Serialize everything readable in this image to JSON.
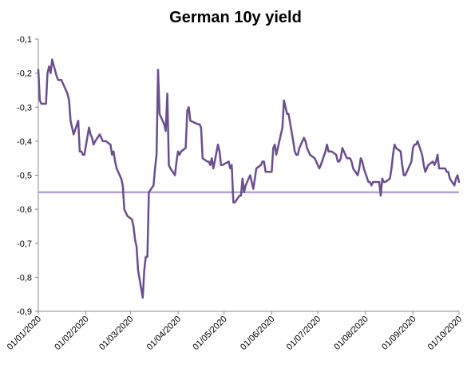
{
  "chart_data": {
    "type": "line",
    "title": "German 10y yield",
    "xlabel": "",
    "ylabel": "",
    "x_range": [
      "01/01/2020",
      "01/10/2020"
    ],
    "ylim": [
      -0.9,
      -0.1
    ],
    "y_ticks": [
      -0.1,
      -0.2,
      -0.3,
      -0.4,
      -0.5,
      -0.6,
      -0.7,
      -0.8,
      -0.9
    ],
    "y_tick_labels": [
      "-0,1",
      "-0,2",
      "-0,3",
      "-0,4",
      "-0,5",
      "-0,6",
      "-0,7",
      "-0,8",
      "-0,9"
    ],
    "x_ticks": [
      "01/01/2020",
      "01/02/2020",
      "01/03/2020",
      "01/04/2020",
      "01/05/2020",
      "01/06/2020",
      "01/07/2020",
      "01/08/2020",
      "01/09/2020",
      "01/10/2020"
    ],
    "grid": false,
    "legend": "none",
    "colors": {
      "series": "#6a4e8f",
      "reference": "#b3a2d1",
      "axis": "#888888"
    },
    "reference_line": {
      "y": -0.55
    },
    "series": [
      {
        "x": [
          "01/01/2020",
          "02/01/2020",
          "03/01/2020",
          "06/01/2020",
          "07/01/2020",
          "08/01/2020",
          "09/01/2020",
          "10/01/2020",
          "13/01/2020",
          "14/01/2020",
          "15/01/2020",
          "16/01/2020",
          "17/01/2020",
          "20/01/2020",
          "21/01/2020",
          "22/01/2020",
          "23/01/2020",
          "24/01/2020",
          "27/01/2020",
          "28/01/2020",
          "29/01/2020",
          "30/01/2020",
          "31/01/2020",
          "03/02/2020",
          "04/02/2020",
          "05/02/2020",
          "06/02/2020",
          "07/02/2020",
          "10/02/2020",
          "11/02/2020",
          "12/02/2020",
          "13/02/2020",
          "14/02/2020",
          "17/02/2020",
          "18/02/2020",
          "19/02/2020",
          "20/02/2020",
          "21/02/2020",
          "24/02/2020",
          "25/02/2020",
          "26/02/2020",
          "27/02/2020",
          "28/02/2020",
          "02/03/2020",
          "03/03/2020",
          "04/03/2020",
          "05/03/2020",
          "06/03/2020",
          "09/03/2020",
          "10/03/2020",
          "11/03/2020",
          "12/03/2020",
          "13/03/2020",
          "16/03/2020",
          "17/03/2020",
          "18/03/2020",
          "19/03/2020",
          "20/03/2020",
          "23/03/2020",
          "24/03/2020",
          "25/03/2020",
          "26/03/2020",
          "27/03/2020",
          "30/03/2020",
          "31/03/2020",
          "01/04/2020",
          "02/04/2020",
          "03/04/2020",
          "06/04/2020",
          "07/04/2020",
          "08/04/2020",
          "09/04/2020",
          "14/04/2020",
          "15/04/2020",
          "16/04/2020",
          "17/04/2020",
          "20/04/2020",
          "21/04/2020",
          "22/04/2020",
          "23/04/2020",
          "24/04/2020",
          "27/04/2020",
          "28/04/2020",
          "29/04/2020",
          "30/04/2020",
          "04/05/2020",
          "05/05/2020",
          "06/05/2020",
          "07/05/2020",
          "08/05/2020",
          "11/05/2020",
          "12/05/2020",
          "13/05/2020",
          "14/05/2020",
          "15/05/2020",
          "18/05/2020",
          "19/05/2020",
          "20/05/2020",
          "21/05/2020",
          "22/05/2020",
          "25/05/2020",
          "26/05/2020",
          "27/05/2020",
          "28/05/2020",
          "29/05/2020",
          "01/06/2020",
          "02/06/2020",
          "03/06/2020",
          "04/06/2020",
          "05/06/2020",
          "08/06/2020",
          "09/06/2020",
          "10/06/2020",
          "11/06/2020",
          "12/06/2020",
          "15/06/2020",
          "16/06/2020",
          "17/06/2020",
          "18/06/2020",
          "19/06/2020",
          "22/06/2020",
          "23/06/2020",
          "24/06/2020",
          "25/06/2020",
          "26/06/2020",
          "29/06/2020",
          "30/06/2020",
          "01/07/2020",
          "02/07/2020",
          "03/07/2020",
          "06/07/2020",
          "07/07/2020",
          "08/07/2020",
          "09/07/2020",
          "10/07/2020",
          "13/07/2020",
          "14/07/2020",
          "15/07/2020",
          "16/07/2020",
          "17/07/2020",
          "20/07/2020",
          "21/07/2020",
          "22/07/2020",
          "23/07/2020",
          "24/07/2020",
          "27/07/2020",
          "28/07/2020",
          "29/07/2020",
          "30/07/2020",
          "31/07/2020",
          "03/08/2020",
          "04/08/2020",
          "05/08/2020",
          "06/08/2020",
          "07/08/2020",
          "10/08/2020",
          "11/08/2020",
          "12/08/2020",
          "13/08/2020",
          "14/08/2020",
          "17/08/2020",
          "18/08/2020",
          "19/08/2020",
          "20/08/2020",
          "21/08/2020",
          "24/08/2020",
          "25/08/2020",
          "26/08/2020",
          "27/08/2020",
          "28/08/2020",
          "31/08/2020",
          "01/09/2020",
          "02/09/2020",
          "03/09/2020",
          "04/09/2020",
          "07/09/2020",
          "08/09/2020",
          "09/09/2020",
          "10/09/2020",
          "11/09/2020",
          "14/09/2020",
          "15/09/2020",
          "16/09/2020",
          "17/09/2020",
          "18/09/2020",
          "21/09/2020",
          "22/09/2020",
          "23/09/2020",
          "24/09/2020",
          "25/09/2020",
          "28/09/2020",
          "29/09/2020",
          "30/09/2020",
          "01/10/2020"
        ],
        "values": [
          -0.19,
          -0.28,
          -0.29,
          -0.29,
          -0.2,
          -0.18,
          -0.2,
          -0.16,
          -0.21,
          -0.22,
          -0.22,
          -0.22,
          -0.23,
          -0.26,
          -0.28,
          -0.34,
          -0.36,
          -0.38,
          -0.34,
          -0.43,
          -0.43,
          -0.44,
          -0.44,
          -0.36,
          -0.38,
          -0.39,
          -0.41,
          -0.4,
          -0.38,
          -0.39,
          -0.4,
          -0.4,
          -0.4,
          -0.41,
          -0.44,
          -0.43,
          -0.46,
          -0.48,
          -0.51,
          -0.53,
          -0.6,
          -0.61,
          -0.62,
          -0.63,
          -0.65,
          -0.69,
          -0.71,
          -0.78,
          -0.86,
          -0.78,
          -0.74,
          -0.74,
          -0.55,
          -0.53,
          -0.48,
          -0.44,
          -0.19,
          -0.32,
          -0.35,
          -0.37,
          -0.26,
          -0.47,
          -0.48,
          -0.5,
          -0.46,
          -0.43,
          -0.44,
          -0.43,
          -0.42,
          -0.31,
          -0.3,
          -0.34,
          -0.35,
          -0.35,
          -0.36,
          -0.45,
          -0.46,
          -0.46,
          -0.47,
          -0.45,
          -0.48,
          -0.41,
          -0.43,
          -0.47,
          -0.47,
          -0.46,
          -0.48,
          -0.47,
          -0.58,
          -0.58,
          -0.56,
          -0.56,
          -0.51,
          -0.55,
          -0.53,
          -0.5,
          -0.52,
          -0.54,
          -0.51,
          -0.48,
          -0.47,
          -0.46,
          -0.46,
          -0.49,
          -0.49,
          -0.49,
          -0.42,
          -0.41,
          -0.44,
          -0.42,
          -0.36,
          -0.28,
          -0.3,
          -0.32,
          -0.32,
          -0.4,
          -0.43,
          -0.44,
          -0.44,
          -0.42,
          -0.39,
          -0.4,
          -0.42,
          -0.43,
          -0.44,
          -0.45,
          -0.46,
          -0.47,
          -0.48,
          -0.47,
          -0.43,
          -0.41,
          -0.43,
          -0.43,
          -0.43,
          -0.44,
          -0.46,
          -0.46,
          -0.45,
          -0.42,
          -0.45,
          -0.45,
          -0.45,
          -0.46,
          -0.48,
          -0.5,
          -0.48,
          -0.45,
          -0.46,
          -0.48,
          -0.52,
          -0.52,
          -0.53,
          -0.52,
          -0.52,
          -0.52,
          -0.56,
          -0.51,
          -0.52,
          -0.52,
          -0.51,
          -0.48,
          -0.44,
          -0.41,
          -0.42,
          -0.43,
          -0.47,
          -0.5,
          -0.5,
          -0.49,
          -0.46,
          -0.42,
          -0.41,
          -0.41,
          -0.4,
          -0.44,
          -0.47,
          -0.49,
          -0.48,
          -0.47,
          -0.46,
          -0.47,
          -0.46,
          -0.44,
          -0.48,
          -0.48,
          -0.48,
          -0.49,
          -0.49,
          -0.51,
          -0.53,
          -0.51,
          -0.5,
          -0.52
        ]
      }
    ]
  }
}
